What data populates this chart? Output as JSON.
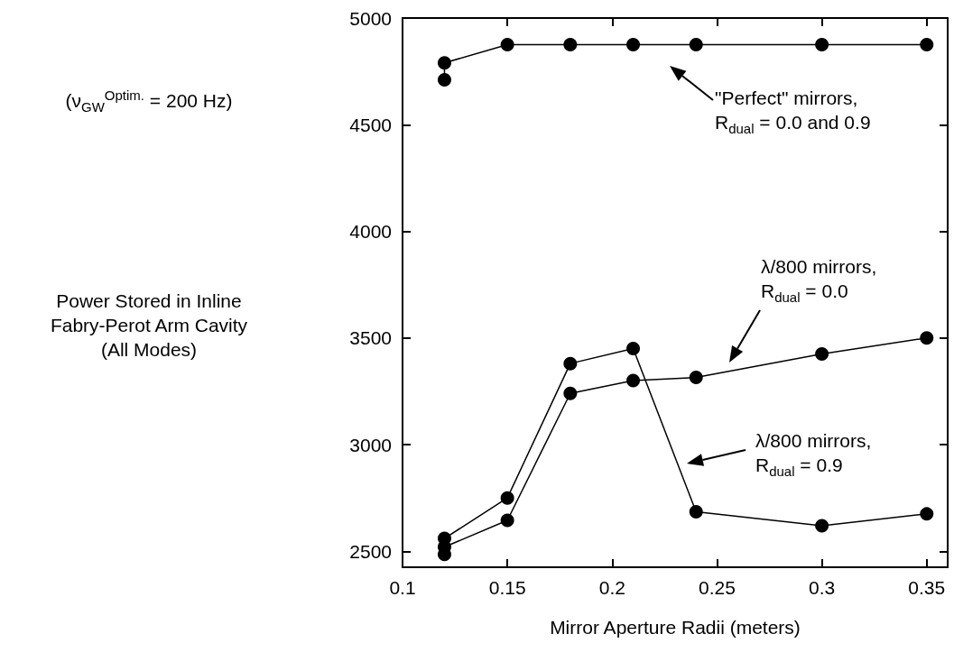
{
  "chart_data": {
    "type": "line",
    "xlabel": "Mirror Aperture Radii  (meters)",
    "series": [
      {
        "color": "#000000",
        "x": [
          0.12,
          0.12,
          0.15,
          0.18,
          0.21,
          0.24,
          0.3,
          0.35
        ],
        "values": [
          4710,
          4790,
          4875,
          4875,
          4875,
          4875,
          4875,
          4875
        ]
      },
      {
        "color": "#000000",
        "x": [
          0.12,
          0.12,
          0.15,
          0.18,
          0.21,
          0.24,
          0.3,
          0.35
        ],
        "values": [
          2485,
          2520,
          2645,
          3240,
          3300,
          3315,
          3425,
          3500
        ]
      },
      {
        "color": "#000000",
        "x": [
          0.12,
          0.15,
          0.18,
          0.21,
          0.24,
          0.3,
          0.35
        ],
        "values": [
          2560,
          2750,
          3380,
          3450,
          2685,
          2620,
          2675
        ]
      }
    ],
    "xlim": [
      0.1,
      0.36
    ],
    "xticks": [
      0.1,
      0.15,
      0.2,
      0.25,
      0.3,
      0.35
    ],
    "ylim": [
      2425,
      5000
    ],
    "yticks": [
      2500,
      3000,
      3500,
      4000,
      4500,
      5000
    ],
    "marker": "circle",
    "line_style": "solid",
    "grid": false,
    "annotations": [
      "(ν$_{GW}$$^{Optim.}$ = 200 Hz)",
      "\"Perfect\" mirrors,\nR$_{dual}$ = 0.0 and 0.9",
      "λ/800 mirrors,\nR$_{dual}$ = 0.0",
      "λ/800 mirrors,\nR$_{dual}$ = 0.9",
      "Power Stored in Inline\nFabry-Perot Arm Cavity\n(All Modes)"
    ]
  }
}
